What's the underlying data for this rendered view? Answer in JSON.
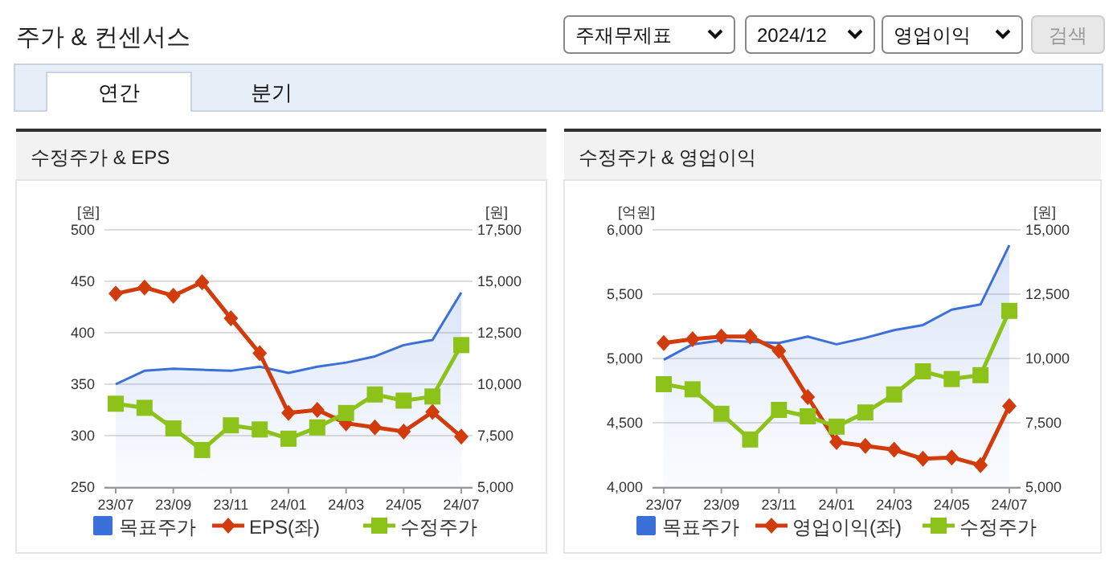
{
  "chart_data": [
    {
      "type": "other",
      "title": "주가 & 컨센서스",
      "annotations": [
        "주재무제표",
        "2024/12",
        "영업이익",
        "검색",
        "연간",
        "분기"
      ]
    },
    {
      "type": "line",
      "title": "수정주가 & EPS",
      "ylabel": "[원]",
      "y2label": "[원]",
      "categories": [
        "23/07",
        null,
        "23/09",
        null,
        "23/11",
        null,
        "24/01",
        null,
        "24/03",
        null,
        "24/05",
        null,
        "24/07"
      ],
      "ylim": [
        250,
        500
      ],
      "yticks": [
        250,
        300,
        350,
        400,
        450,
        500
      ],
      "y2lim": [
        5000,
        17500
      ],
      "y2ticks": [
        {
          "value": 5000,
          "label": "5,000"
        },
        {
          "value": 7500,
          "label": "7,500"
        },
        {
          "value": 10000,
          "label": "10,000"
        },
        {
          "value": 12500,
          "label": "12,500"
        },
        {
          "value": 15000,
          "label": "15,000"
        },
        {
          "value": 17500,
          "label": "17,500"
        }
      ],
      "grid": "y",
      "legend": "bottom",
      "series": [
        {
          "name": "목표주가",
          "type": "area",
          "axis": "y2",
          "color": "#3b70d9",
          "marker": "none",
          "values": [
            10000,
            10650,
            10750,
            10700,
            10650,
            10850,
            10550,
            10850,
            11050,
            11350,
            11900,
            12150,
            14450
          ]
        },
        {
          "name": "EPS(좌)",
          "type": "line",
          "axis": "y",
          "color": "#d23c0c",
          "marker": "diamond",
          "values": [
            438,
            444,
            436,
            449,
            414,
            380,
            322,
            325,
            312,
            308,
            304,
            323,
            299
          ]
        },
        {
          "name": "수정주가",
          "type": "line",
          "axis": "y2",
          "color": "#8cc21a",
          "marker": "square",
          "values": [
            9050,
            8850,
            7850,
            6800,
            8000,
            7800,
            7350,
            7900,
            8600,
            9500,
            9200,
            9400,
            11900
          ]
        }
      ]
    },
    {
      "type": "line",
      "title": "수정주가 & 영업이익",
      "ylabel": "[억원]",
      "y2label": "[원]",
      "categories": [
        "23/07",
        null,
        "23/09",
        null,
        "23/11",
        null,
        "24/01",
        null,
        "24/03",
        null,
        "24/05",
        null,
        "24/07"
      ],
      "ylim": [
        4000,
        6000
      ],
      "yticks": [
        {
          "value": 4000,
          "label": "4,000"
        },
        {
          "value": 4500,
          "label": "4,500"
        },
        {
          "value": 5000,
          "label": "5,000"
        },
        {
          "value": 5500,
          "label": "5,500"
        },
        {
          "value": 6000,
          "label": "6,000"
        }
      ],
      "y2lim": [
        5000,
        15000
      ],
      "y2ticks": [
        {
          "value": 5000,
          "label": "5,000"
        },
        {
          "value": 7500,
          "label": "7,500"
        },
        {
          "value": 10000,
          "label": "10,000"
        },
        {
          "value": 12500,
          "label": "12,500"
        },
        {
          "value": 15000,
          "label": "15,000"
        }
      ],
      "grid": "y",
      "legend": "bottom",
      "series": [
        {
          "name": "목표주가",
          "type": "area",
          "axis": "y2",
          "color": "#3b70d9",
          "marker": "none",
          "values": [
            9950,
            10550,
            10700,
            10650,
            10600,
            10850,
            10550,
            10800,
            11100,
            11300,
            11900,
            12100,
            14400
          ]
        },
        {
          "name": "영업이익(좌)",
          "type": "line",
          "axis": "y",
          "color": "#d23c0c",
          "marker": "diamond",
          "values": [
            5120,
            5150,
            5170,
            5170,
            5060,
            4700,
            4350,
            4320,
            4290,
            4220,
            4230,
            4170,
            4630
          ]
        },
        {
          "name": "수정주가",
          "type": "line",
          "axis": "y2",
          "color": "#8cc21a",
          "marker": "square",
          "values": [
            9000,
            8800,
            7850,
            6850,
            8000,
            7750,
            7350,
            7900,
            8600,
            9500,
            9200,
            9350,
            11850
          ]
        }
      ]
    }
  ]
}
